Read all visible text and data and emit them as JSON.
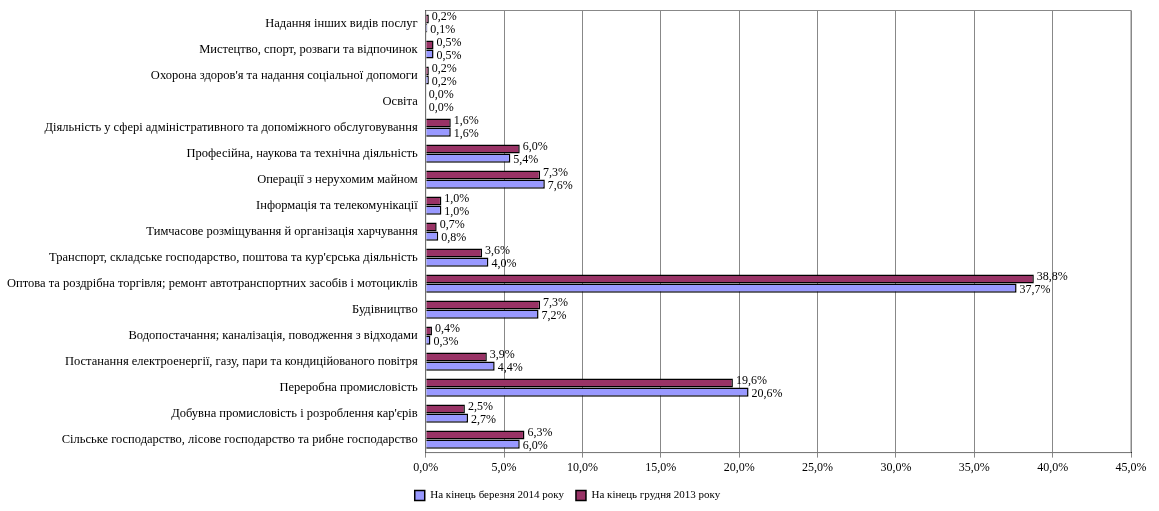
{
  "chart_data": {
    "type": "bar",
    "orientation": "horizontal",
    "categories": [
      "Надання інших видів послуг",
      "Мистецтво, спорт, розваги та відпочинок",
      "Охорона здоров'я та надання соціальної допомоги",
      "Освіта",
      "Діяльність у сфері адміністративного та допоміжного обслуговування",
      "Професійна, наукова та технічна діяльність",
      "Операції з нерухомим майном",
      "Інформація та телекомунікації",
      "Тимчасове розміщування й організація харчування",
      "Транспорт, складське господарство, поштова та кур'єрська діяльність",
      "Оптова та роздрібна торгівля; ремонт автотранспортних засобів і мотоциклів",
      "Будівництво",
      "Водопостачання; каналізація, поводження з відходами",
      "Постанання електроенергії, газу, пари та кондиційованого повітря",
      "Переробна промисловість",
      "Добувна промисловість і розроблення кар'єрів",
      "Сільське господарство, лісове господарство та рибне господарство"
    ],
    "series": [
      {
        "name": "На кінець березня 2014 року",
        "color": "#9999ff",
        "values": [
          0.1,
          0.5,
          0.2,
          0.0,
          1.6,
          5.4,
          7.6,
          1.0,
          0.8,
          4.0,
          37.7,
          7.2,
          0.3,
          4.4,
          20.6,
          2.7,
          6.0
        ],
        "value_labels": [
          "0,1%",
          "0,5%",
          "0,2%",
          "0,0%",
          "1,6%",
          "5,4%",
          "7,6%",
          "1,0%",
          "0,8%",
          "4,0%",
          "37,7%",
          "7,2%",
          "0,3%",
          "4,4%",
          "20,6%",
          "2,7%",
          "6,0%"
        ]
      },
      {
        "name": "На кінець грудня 2013 року",
        "color": "#993366",
        "values": [
          0.2,
          0.5,
          0.2,
          0.0,
          1.6,
          6.0,
          7.3,
          1.0,
          0.7,
          3.6,
          38.8,
          7.3,
          0.4,
          3.9,
          19.6,
          2.5,
          6.3
        ],
        "value_labels": [
          "0,2%",
          "0,5%",
          "0,2%",
          "0,0%",
          "1,6%",
          "6,0%",
          "7,3%",
          "1,0%",
          "0,7%",
          "3,6%",
          "38,8%",
          "7,3%",
          "0,4%",
          "3,9%",
          "19,6%",
          "2,5%",
          "6,3%"
        ]
      }
    ],
    "xlim": [
      0,
      45
    ],
    "xticks": [
      {
        "value": 0,
        "label": "0,0%"
      },
      {
        "value": 5,
        "label": "5,0%"
      },
      {
        "value": 10,
        "label": "10,0%"
      },
      {
        "value": 15,
        "label": "15,0%"
      },
      {
        "value": 20,
        "label": "20,0%"
      },
      {
        "value": 25,
        "label": "25,0%"
      },
      {
        "value": 30,
        "label": "30,0%"
      },
      {
        "value": 35,
        "label": "35,0%"
      },
      {
        "value": 40,
        "label": "40,0%"
      },
      {
        "value": 45,
        "label": "45,0%"
      }
    ],
    "grid": "x",
    "legend": "bottom"
  }
}
